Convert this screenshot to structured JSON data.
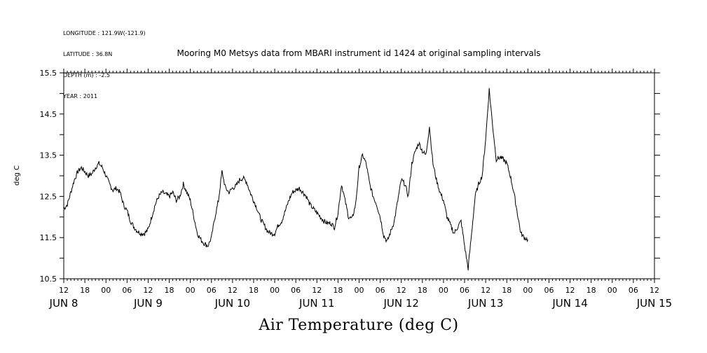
{
  "meta": {
    "longitude": "LONGITUDE : 121.9W(-121.9)",
    "latitude": "LATITUDE : 36.8N",
    "depth": "DEPTH (m) : -2.5",
    "year": "YEAR : 2011"
  },
  "chart_data": {
    "type": "line",
    "title": "Mooring M0 Metsys data from MBARI instrument id 1424 at original sampling intervals",
    "xlabel": "Air Temperature (deg C)",
    "ylabel": "deg C",
    "ylim": [
      10.5,
      15.5
    ],
    "y_ticks": [
      "10.5",
      "11.5",
      "12.5",
      "13.5",
      "14.5",
      "15.5"
    ],
    "x_hour_range": [
      12,
      180
    ],
    "x_tick_labels": [
      "12",
      "18",
      "00",
      "06",
      "12",
      "18",
      "00",
      "06",
      "12",
      "18",
      "00",
      "06",
      "12",
      "18",
      "00",
      "06",
      "12",
      "18",
      "00",
      "06",
      "12",
      "18",
      "00",
      "06",
      "12",
      "18",
      "00",
      "06",
      "12"
    ],
    "day_labels": [
      {
        "label": "JUN  8",
        "hour": 12
      },
      {
        "label": "JUN  9",
        "hour": 36
      },
      {
        "label": "JUN 10",
        "hour": 60
      },
      {
        "label": "JUN 11",
        "hour": 84
      },
      {
        "label": "JUN 12",
        "hour": 108
      },
      {
        "label": "JUN 13",
        "hour": 132
      },
      {
        "label": "JUN 14",
        "hour": 156
      },
      {
        "label": "JUN 15",
        "hour": 180
      }
    ],
    "series": [
      {
        "points": [
          [
            12,
            12.2
          ],
          [
            13,
            12.3
          ],
          [
            14,
            12.6
          ],
          [
            15,
            12.9
          ],
          [
            16,
            13.1
          ],
          [
            17,
            13.2
          ],
          [
            18,
            13.1
          ],
          [
            19,
            13.0
          ],
          [
            20,
            13.05
          ],
          [
            21,
            13.2
          ],
          [
            22,
            13.3
          ],
          [
            23,
            13.2
          ],
          [
            24,
            13.0
          ],
          [
            25,
            12.8
          ],
          [
            26,
            12.65
          ],
          [
            27,
            12.7
          ],
          [
            28,
            12.6
          ],
          [
            29,
            12.3
          ],
          [
            30,
            12.15
          ],
          [
            31,
            11.9
          ],
          [
            32,
            11.75
          ],
          [
            33,
            11.65
          ],
          [
            34,
            11.6
          ],
          [
            35,
            11.6
          ],
          [
            36,
            11.7
          ],
          [
            37,
            12.0
          ],
          [
            38,
            12.3
          ],
          [
            39,
            12.5
          ],
          [
            40,
            12.6
          ],
          [
            41,
            12.55
          ],
          [
            42,
            12.5
          ],
          [
            43,
            12.6
          ],
          [
            44,
            12.4
          ],
          [
            45,
            12.5
          ],
          [
            46,
            12.8
          ],
          [
            47,
            12.6
          ],
          [
            48,
            12.4
          ],
          [
            49,
            12.0
          ],
          [
            50,
            11.6
          ],
          [
            51,
            11.45
          ],
          [
            52,
            11.35
          ],
          [
            53,
            11.3
          ],
          [
            54,
            11.5
          ],
          [
            55,
            12.0
          ],
          [
            56,
            12.4
          ],
          [
            57,
            13.1
          ],
          [
            58,
            12.7
          ],
          [
            59,
            12.6
          ],
          [
            60,
            12.7
          ],
          [
            61,
            12.75
          ],
          [
            62,
            12.9
          ],
          [
            63,
            12.95
          ],
          [
            64,
            12.85
          ],
          [
            65,
            12.6
          ],
          [
            66,
            12.4
          ],
          [
            67,
            12.2
          ],
          [
            68,
            11.95
          ],
          [
            69,
            11.8
          ],
          [
            70,
            11.65
          ],
          [
            71,
            11.6
          ],
          [
            72,
            11.6
          ],
          [
            73,
            11.8
          ],
          [
            74,
            11.9
          ],
          [
            75,
            12.15
          ],
          [
            76,
            12.4
          ],
          [
            77,
            12.6
          ],
          [
            78,
            12.65
          ],
          [
            79,
            12.7
          ],
          [
            80,
            12.6
          ],
          [
            81,
            12.5
          ],
          [
            82,
            12.3
          ],
          [
            83,
            12.2
          ],
          [
            84,
            12.1
          ],
          [
            85,
            12.0
          ],
          [
            86,
            11.9
          ],
          [
            87,
            11.85
          ],
          [
            88,
            11.85
          ],
          [
            89,
            11.75
          ],
          [
            90,
            12.1
          ],
          [
            91,
            12.8
          ],
          [
            92,
            12.4
          ],
          [
            93,
            12.0
          ],
          [
            94,
            11.95
          ],
          [
            95,
            12.3
          ],
          [
            96,
            13.2
          ],
          [
            97,
            13.5
          ],
          [
            98,
            13.3
          ],
          [
            99,
            12.8
          ],
          [
            100,
            12.5
          ],
          [
            101,
            12.3
          ],
          [
            102,
            12.0
          ],
          [
            103,
            11.55
          ],
          [
            104,
            11.4
          ],
          [
            105,
            11.65
          ],
          [
            106,
            11.9
          ],
          [
            107,
            12.4
          ],
          [
            108,
            12.9
          ],
          [
            109,
            12.8
          ],
          [
            110,
            12.5
          ],
          [
            111,
            13.3
          ],
          [
            112,
            13.6
          ],
          [
            113,
            13.8
          ],
          [
            114,
            13.6
          ],
          [
            115,
            13.5
          ],
          [
            116,
            14.2
          ],
          [
            117,
            13.3
          ],
          [
            118,
            12.9
          ],
          [
            119,
            12.6
          ],
          [
            120,
            12.4
          ],
          [
            121,
            12.0
          ],
          [
            122,
            11.8
          ],
          [
            123,
            11.6
          ],
          [
            124,
            11.75
          ],
          [
            125,
            11.9
          ],
          [
            126,
            11.3
          ],
          [
            127,
            10.75
          ],
          [
            128,
            11.6
          ],
          [
            129,
            12.5
          ],
          [
            130,
            12.8
          ],
          [
            131,
            13.0
          ],
          [
            132,
            13.9
          ],
          [
            133,
            15.1
          ],
          [
            134,
            14.2
          ],
          [
            135,
            13.4
          ],
          [
            136,
            13.45
          ],
          [
            137,
            13.4
          ],
          [
            138,
            13.3
          ],
          [
            139,
            13.0
          ],
          [
            140,
            12.6
          ],
          [
            141,
            12.1
          ],
          [
            142,
            11.6
          ],
          [
            143,
            11.5
          ],
          [
            144,
            11.45
          ]
        ]
      }
    ]
  }
}
